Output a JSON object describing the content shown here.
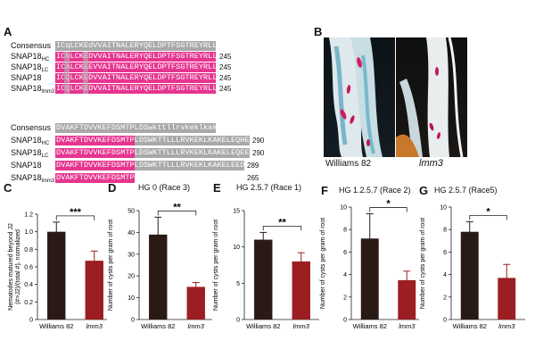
{
  "panels": {
    "a": "A",
    "b": "B",
    "c": "C",
    "d": "D",
    "e": "E",
    "f": "F",
    "g": "G"
  },
  "alignment": {
    "block1": [
      {
        "name": "Consensus",
        "sub": "",
        "seq": "ICqLCKEdVVAITNALERYQELDPTFSGTREYRLLADIAAIDEE",
        "end": ""
      },
      {
        "name": "SNAP18",
        "sub": "HC",
        "seq": "ICNLCKEDVVAITNALERYQELDPTFSGTREYRLLADIAAIDEE",
        "end": "245"
      },
      {
        "name": "SNAP18",
        "sub": "LC",
        "seq": "ICALCKEEVVAITNALERYQELDPTFSGTREYRLLADIAAIDEE",
        "end": "245"
      },
      {
        "name": "SNAP18",
        "sub": "",
        "seq": "ICQLCKEDVVAITNALERYQELDPTFSGTREYRLLADIAAIDEE",
        "end": "245"
      },
      {
        "name": "SNAP18",
        "sub": "lmm3",
        "seq": "ICQLCKEDVVAITNALERYQELDPTFSGTREYRLLADIAAIDEE",
        "end": "245"
      }
    ],
    "block2": [
      {
        "name": "Consensus",
        "sub": "",
        "seq": "DVAKFTDVVKEFDSMTPLDSwkttllrvkeklkakele",
        "end": ""
      },
      {
        "name": "SNAP18",
        "sub": "HC",
        "seq": "DVAKFTDVVKEFDSMTPLDSWKTTLLLRVKEKLKAKELEQHEAIT",
        "end": "290"
      },
      {
        "name": "SNAP18",
        "sub": "LC",
        "seq": "DVAKFTDVVKEFDSMTPLDSWKTTLLLRVKEKLKAKELEQEEVIT",
        "end": "290"
      },
      {
        "name": "SNAP18",
        "sub": "",
        "seq": "DVAKFTDVVKEFDSMTPLDSWKTTLLLRVKEKLKAKELEEDDLT",
        "end": "289"
      },
      {
        "name": "SNAP18",
        "sub": "lmm3",
        "seq": "DVAKFTDVVKEFDSMTPLDS",
        "end": "265"
      }
    ]
  },
  "photos": {
    "left_label": "Williams 82",
    "right_label": "lmm3"
  },
  "chart_data": [
    {
      "id": "C",
      "type": "bar",
      "title": "",
      "ylabel": "Nematodes matured beyond J2 (#>J2)/(total #), normalized",
      "categories": [
        "Williams 82",
        "lmm3"
      ],
      "values": [
        1.0,
        0.67
      ],
      "errors": [
        0.11,
        0.11
      ],
      "ylim": [
        0,
        1.2
      ],
      "yticks": [
        "0",
        "0.2",
        "0.4",
        "0.6",
        "0.8",
        "1.0",
        "1.2"
      ],
      "significance": "***"
    },
    {
      "id": "D",
      "type": "bar",
      "title": "HG 0 (Race 3)",
      "ylabel": "Number of cysts per gram of root",
      "categories": [
        "Williams 82",
        "lmm3"
      ],
      "values": [
        39,
        15
      ],
      "errors": [
        8,
        2
      ],
      "ylim": [
        0,
        50
      ],
      "yticks": [
        "0",
        "10",
        "20",
        "30",
        "40",
        "50"
      ],
      "significance": "**"
    },
    {
      "id": "E",
      "type": "bar",
      "title": "HG 2.5.7 (Race 1)",
      "ylabel": "Number of cysts per gram of root",
      "categories": [
        "Williams 82",
        "lmm3"
      ],
      "values": [
        11,
        8
      ],
      "errors": [
        1,
        1.2
      ],
      "ylim": [
        0,
        15
      ],
      "yticks": [
        "0",
        "5",
        "10",
        "15"
      ],
      "significance": "**"
    },
    {
      "id": "F",
      "type": "bar",
      "title": "HG 1.2.5.7 (Race 2)",
      "ylabel": "Number of cysts per gram of root",
      "categories": [
        "Williams 82",
        "lmm3"
      ],
      "values": [
        7.2,
        3.5
      ],
      "errors": [
        2.2,
        0.8
      ],
      "ylim": [
        0,
        10
      ],
      "yticks": [
        "0",
        "2",
        "4",
        "6",
        "8",
        "10"
      ],
      "significance": "*"
    },
    {
      "id": "G",
      "type": "bar",
      "title": "HG 2.5.7 (Race5)",
      "ylabel": "Number of cysts per gram of root",
      "categories": [
        "Williams 82",
        "lmm3"
      ],
      "values": [
        7.8,
        3.7
      ],
      "errors": [
        0.9,
        1.2
      ],
      "ylim": [
        0,
        10
      ],
      "yticks": [
        "0",
        "2",
        "4",
        "6",
        "8",
        "10"
      ],
      "significance": "*"
    }
  ],
  "colors": {
    "consensus_box": "#a9a9a9",
    "identical_box": "#e6358f",
    "bar_williams": "#2a1a16",
    "bar_lmm3": "#9b1e22"
  }
}
